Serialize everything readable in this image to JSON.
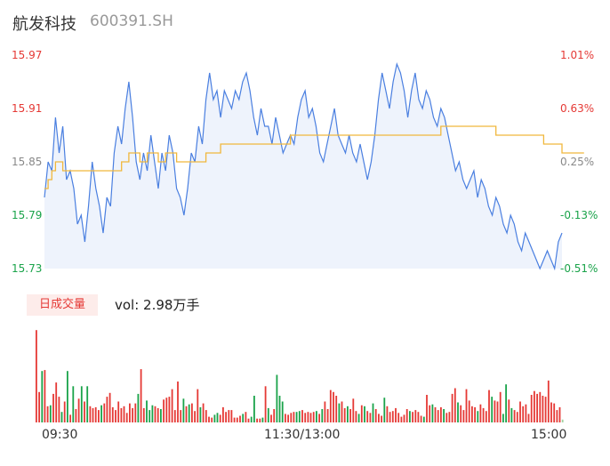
{
  "header": {
    "name": "航发科技",
    "code": "600391.SH"
  },
  "badge": "日成交量",
  "volume_text": "vol: 2.98万手",
  "colors": {
    "up": "#e53935",
    "down": "#1aa34a",
    "neutral": "#888888",
    "price_line": "#4a7fe0",
    "avg_line": "#f0b73c"
  },
  "chart_data": [
    {
      "type": "line",
      "title": "",
      "yticks_left": [
        "15.97",
        "15.91",
        "15.85",
        "15.79",
        "15.73"
      ],
      "yticks_right": [
        "1.01%",
        "0.63%",
        "0.25%",
        "-0.13%",
        "-0.51%"
      ],
      "ylim": [
        15.73,
        15.97
      ],
      "x_ticks": [
        "09:30",
        "11:30/13:00",
        "15:00"
      ],
      "series": [
        {
          "name": "",
          "values": [
            15.81,
            15.85,
            15.84,
            15.9,
            15.86,
            15.89,
            15.83,
            15.84,
            15.82,
            15.78,
            15.79,
            15.76,
            15.8,
            15.85,
            15.82,
            15.8,
            15.77,
            15.81,
            15.8,
            15.86,
            15.89,
            15.87,
            15.91,
            15.94,
            15.9,
            15.85,
            15.83,
            15.86,
            15.84,
            15.88,
            15.85,
            15.82,
            15.86,
            15.84,
            15.88,
            15.86,
            15.82,
            15.81,
            15.79,
            15.82,
            15.86,
            15.85,
            15.89,
            15.87,
            15.92,
            15.95,
            15.92,
            15.93,
            15.9,
            15.93,
            15.92,
            15.91,
            15.93,
            15.92,
            15.94,
            15.95,
            15.93,
            15.9,
            15.88,
            15.91,
            15.89,
            15.89,
            15.87,
            15.9,
            15.88,
            15.86,
            15.87,
            15.88,
            15.87,
            15.9,
            15.92,
            15.93,
            15.9,
            15.91,
            15.89,
            15.86,
            15.85,
            15.87,
            15.89,
            15.91,
            15.88,
            15.87,
            15.86,
            15.88,
            15.86,
            15.85,
            15.87,
            15.85,
            15.83,
            15.85,
            15.88,
            15.92,
            15.95,
            15.93,
            15.91,
            15.94,
            15.96,
            15.95,
            15.93,
            15.9,
            15.93,
            15.95,
            15.92,
            15.91,
            15.93,
            15.92,
            15.9,
            15.89,
            15.91,
            15.9,
            15.88,
            15.86,
            15.84,
            15.85,
            15.83,
            15.82,
            15.83,
            15.84,
            15.81,
            15.83,
            15.82,
            15.8,
            15.79,
            15.81,
            15.8,
            15.78,
            15.77,
            15.79,
            15.78,
            15.76,
            15.75,
            15.77,
            15.76,
            15.75,
            15.74,
            15.73,
            15.74,
            15.75,
            15.74,
            15.73,
            15.76,
            15.77
          ]
        },
        {
          "name": "",
          "values": [
            15.82,
            15.83,
            15.84,
            15.85,
            15.85,
            15.84,
            15.84,
            15.84,
            15.84,
            15.84,
            15.84,
            15.84,
            15.84,
            15.84,
            15.84,
            15.84,
            15.84,
            15.84,
            15.84,
            15.84,
            15.84,
            15.85,
            15.85,
            15.86,
            15.86,
            15.86,
            15.85,
            15.85,
            15.86,
            15.86,
            15.86,
            15.85,
            15.85,
            15.86,
            15.86,
            15.86,
            15.85,
            15.85,
            15.85,
            15.85,
            15.85,
            15.85,
            15.85,
            15.85,
            15.86,
            15.86,
            15.86,
            15.86,
            15.87,
            15.87,
            15.87,
            15.87,
            15.87,
            15.87,
            15.87,
            15.87,
            15.87,
            15.87,
            15.87,
            15.87,
            15.87,
            15.87,
            15.87,
            15.87,
            15.87,
            15.87,
            15.87,
            15.88,
            15.88,
            15.88,
            15.88,
            15.88,
            15.88,
            15.88,
            15.88,
            15.88,
            15.88,
            15.88,
            15.88,
            15.88,
            15.88,
            15.88,
            15.88,
            15.88,
            15.88,
            15.88,
            15.88,
            15.88,
            15.88,
            15.88,
            15.88,
            15.88,
            15.88,
            15.88,
            15.88,
            15.88,
            15.88,
            15.88,
            15.88,
            15.88,
            15.88,
            15.88,
            15.88,
            15.88,
            15.88,
            15.88,
            15.88,
            15.88,
            15.89,
            15.89,
            15.89,
            15.89,
            15.89,
            15.89,
            15.89,
            15.89,
            15.89,
            15.89,
            15.89,
            15.89,
            15.89,
            15.89,
            15.89,
            15.88,
            15.88,
            15.88,
            15.88,
            15.88,
            15.88,
            15.88,
            15.88,
            15.88,
            15.88,
            15.88,
            15.88,
            15.88,
            15.87,
            15.87,
            15.87,
            15.87,
            15.87,
            15.86,
            15.86,
            15.86,
            15.86,
            15.86,
            15.86,
            15.86
          ]
        }
      ]
    },
    {
      "type": "bar",
      "title": "",
      "ylim": [
        0,
        100
      ],
      "values": [
        97,
        32,
        54,
        55,
        17,
        18,
        30,
        42,
        27,
        11,
        22,
        54,
        8,
        38,
        14,
        25,
        38,
        22,
        38,
        17,
        15,
        16,
        13,
        18,
        20,
        27,
        31,
        16,
        13,
        22,
        15,
        17,
        10,
        20,
        15,
        20,
        30,
        56,
        15,
        23,
        13,
        18,
        17,
        15,
        14,
        24,
        26,
        27,
        35,
        13,
        43,
        13,
        25,
        17,
        19,
        20,
        12,
        35,
        16,
        20,
        13,
        6,
        5,
        8,
        10,
        8,
        16,
        11,
        13,
        13,
        5,
        5,
        7,
        9,
        11,
        4,
        6,
        28,
        4,
        4,
        5,
        38,
        15,
        8,
        14,
        50,
        28,
        22,
        9,
        8,
        10,
        11,
        11,
        12,
        13,
        10,
        11,
        10,
        11,
        12,
        9,
        14,
        22,
        14,
        34,
        32,
        28,
        20,
        22,
        15,
        17,
        14,
        25,
        12,
        9,
        18,
        17,
        12,
        10,
        20,
        14,
        9,
        7,
        26,
        17,
        11,
        12,
        15,
        10,
        6,
        8,
        14,
        12,
        11,
        13,
        11,
        7,
        6,
        29,
        18,
        19,
        16,
        13,
        16,
        14,
        10,
        11,
        30,
        36,
        21,
        18,
        13,
        35,
        23,
        17,
        16,
        12,
        19,
        15,
        12,
        34,
        27,
        23,
        22,
        32,
        9,
        40,
        24,
        15,
        13,
        11,
        22,
        17,
        19,
        9,
        29,
        33,
        30,
        32,
        28,
        27,
        44,
        21,
        20,
        13,
        16,
        3
      ],
      "colors_per_bar": [
        "up",
        "up",
        "down",
        "up",
        "up",
        "down",
        "up",
        "up",
        "up",
        "down",
        "up",
        "down",
        "up",
        "down",
        "up",
        "up",
        "down",
        "up",
        "down",
        "up",
        "up",
        "up",
        "up",
        "down",
        "up",
        "up",
        "up",
        "up",
        "up",
        "up",
        "up",
        "up",
        "up",
        "up",
        "up",
        "up",
        "down",
        "up",
        "up",
        "down",
        "down",
        "down",
        "up",
        "up",
        "down",
        "up",
        "up",
        "up",
        "up",
        "up",
        "up",
        "up",
        "down",
        "up",
        "down",
        "up",
        "up",
        "up",
        "down",
        "up",
        "up",
        "up",
        "up",
        "down",
        "down",
        "up",
        "up",
        "up",
        "up",
        "up",
        "up",
        "up",
        "up",
        "down",
        "up",
        "up",
        "down",
        "down",
        "up",
        "up",
        "down",
        "up",
        "down",
        "up",
        "up",
        "down",
        "down",
        "down",
        "up",
        "up",
        "up",
        "up",
        "down",
        "down",
        "up",
        "up",
        "up",
        "up",
        "up",
        "down",
        "up",
        "down",
        "up",
        "up",
        "up",
        "up",
        "up",
        "down",
        "up",
        "up",
        "down",
        "up",
        "up",
        "up",
        "down",
        "up",
        "down",
        "up",
        "up",
        "down",
        "up",
        "up",
        "up",
        "down",
        "up",
        "up",
        "up",
        "up",
        "up",
        "up",
        "up",
        "up",
        "down",
        "up",
        "up",
        "up",
        "up",
        "down",
        "up",
        "up",
        "down",
        "up",
        "up",
        "up",
        "down",
        "up",
        "up",
        "up",
        "up",
        "down",
        "up",
        "up",
        "up",
        "up",
        "up",
        "up",
        "down",
        "up",
        "up",
        "up",
        "up",
        "down",
        "up",
        "up",
        "up",
        "down",
        "down",
        "up",
        "down",
        "up",
        "up",
        "up",
        "up",
        "up",
        "up",
        "up",
        "up",
        "up",
        "up",
        "up",
        "up",
        "up",
        "up",
        "up",
        "up",
        "up",
        "neutral"
      ]
    }
  ]
}
